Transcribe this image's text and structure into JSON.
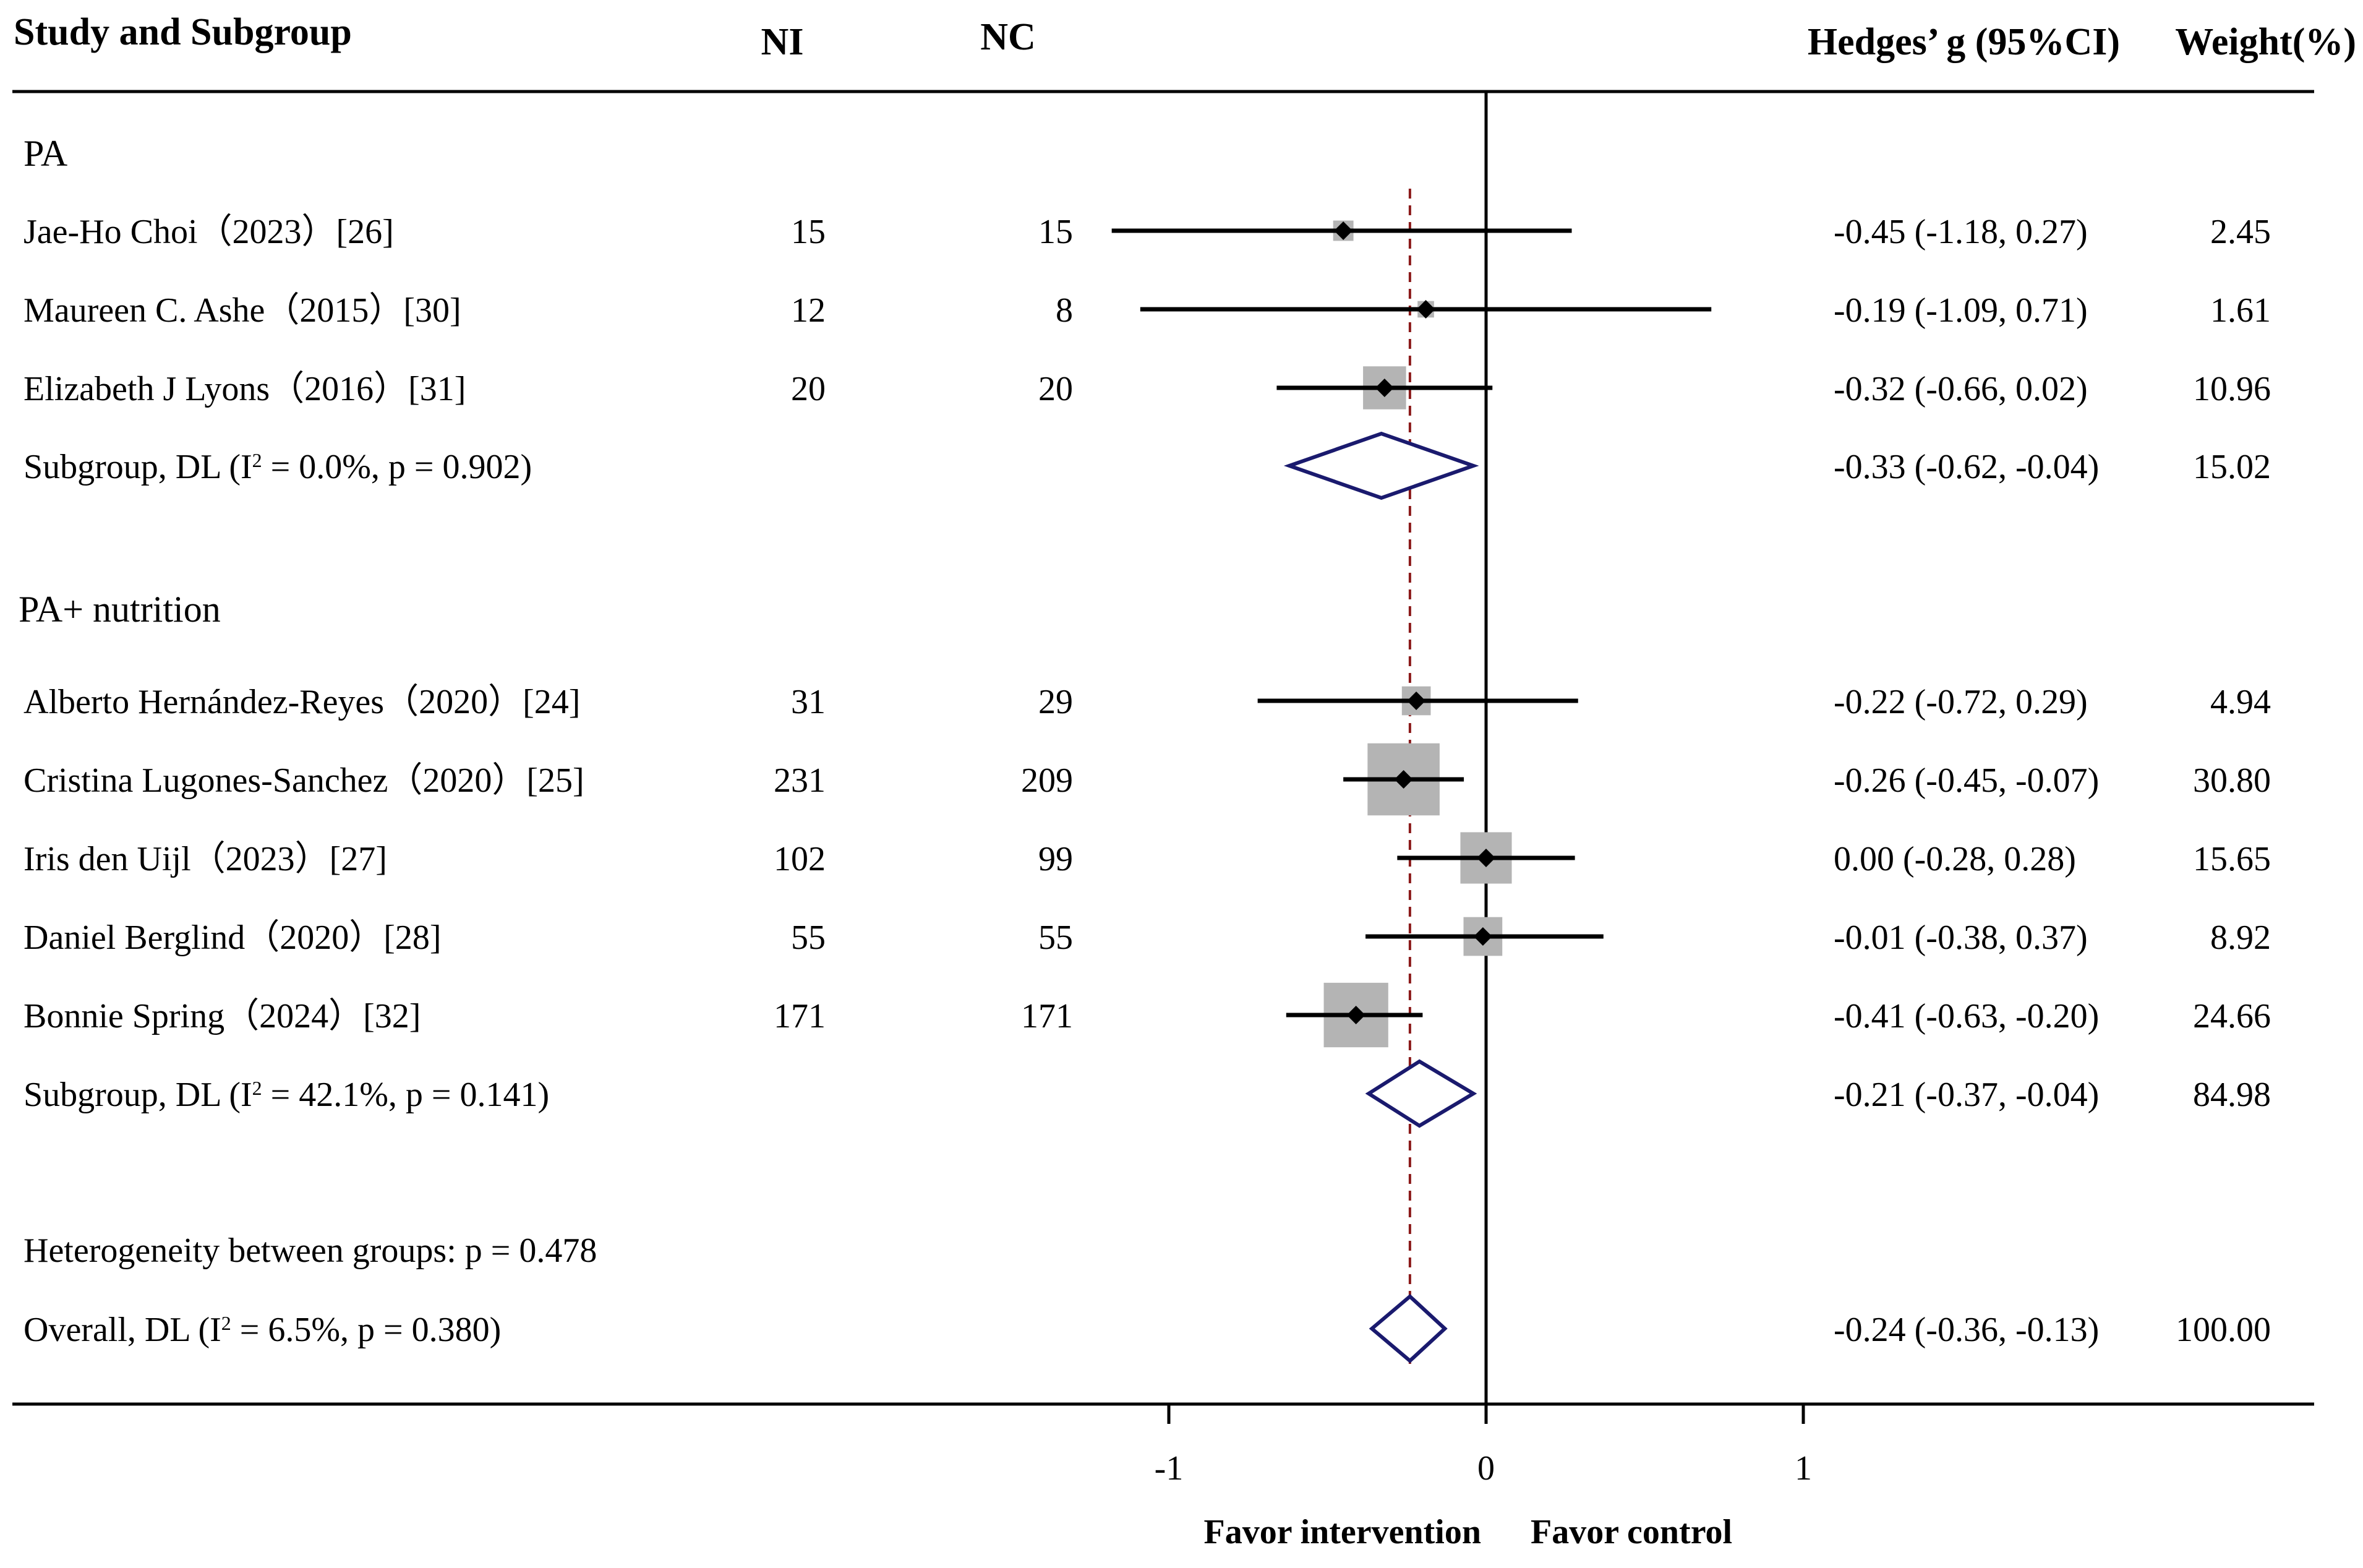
{
  "chart_data": {
    "type": "forest",
    "headers": {
      "study": "Study and Subgroup",
      "ni": "NI",
      "nc": "NC",
      "effect": "Hedges’ g (95%CI)",
      "weight": "Weight(%)"
    },
    "x_range": [
      -1.6,
      1.8
    ],
    "x_ticks": [
      {
        "value": -1,
        "label": "-1"
      },
      {
        "value": 0,
        "label": "0"
      },
      {
        "value": 1,
        "label": "1"
      }
    ],
    "reference_line": 0,
    "overall_effect_line": -0.24,
    "favor_left": "Favor intervention",
    "favor_right": "Favor control",
    "subgroups": [
      {
        "name": "PA",
        "studies": [
          {
            "study": "Jae-Ho Choi（2023）[26]",
            "ni": "15",
            "nc": "15",
            "g": -0.45,
            "lo": -1.18,
            "hi": 0.27,
            "ci_text": "-0.45 (-1.18, 0.27)",
            "weight": 2.45,
            "weight_text": "2.45"
          },
          {
            "study": "Maureen C. Ashe（2015）[30]",
            "ni": "12",
            "nc": "8",
            "g": -0.19,
            "lo": -1.09,
            "hi": 0.71,
            "ci_text": "-0.19 (-1.09, 0.71)",
            "weight": 1.61,
            "weight_text": "1.61"
          },
          {
            "study": "Elizabeth J Lyons（2016）[31]",
            "ni": "20",
            "nc": "20",
            "g": -0.32,
            "lo": -0.66,
            "hi": 0.02,
            "ci_text": "-0.32 (-0.66, 0.02)",
            "weight": 10.96,
            "weight_text": "10.96"
          }
        ],
        "summary": {
          "label_pre": "Subgroup, DL (I",
          "label_sup": "2",
          "label_post": " = 0.0%, p = 0.902)",
          "g": -0.33,
          "lo": -0.62,
          "hi": -0.04,
          "ci_text": "-0.33 (-0.62, -0.04)",
          "weight_text": "15.02"
        }
      },
      {
        "name": "PA+ nutrition",
        "studies": [
          {
            "study": "Alberto Hernández-Reyes（2020）[24]",
            "ni": "31",
            "nc": "29",
            "g": -0.22,
            "lo": -0.72,
            "hi": 0.29,
            "ci_text": "-0.22 (-0.72, 0.29)",
            "weight": 4.94,
            "weight_text": "4.94"
          },
          {
            "study": "Cristina Lugones-Sanchez（2020）[25]",
            "ni": "231",
            "nc": "209",
            "g": -0.26,
            "lo": -0.45,
            "hi": -0.07,
            "ci_text": "-0.26 (-0.45, -0.07)",
            "weight": 30.8,
            "weight_text": "30.80"
          },
          {
            "study": "Iris den Uijl（2023）[27]",
            "ni": "102",
            "nc": "99",
            "g": 0.0,
            "lo": -0.28,
            "hi": 0.28,
            "ci_text": "0.00 (-0.28, 0.28)",
            "weight": 15.65,
            "weight_text": "15.65"
          },
          {
            "study": "Daniel Berglind（2020）[28]",
            "ni": "55",
            "nc": "55",
            "g": -0.01,
            "lo": -0.38,
            "hi": 0.37,
            "ci_text": "-0.01 (-0.38, 0.37)",
            "weight": 8.92,
            "weight_text": "8.92"
          },
          {
            "study": "Bonnie Spring（2024）[32]",
            "ni": "171",
            "nc": "171",
            "g": -0.41,
            "lo": -0.63,
            "hi": -0.2,
            "ci_text": "-0.41 (-0.63, -0.20)",
            "weight": 24.66,
            "weight_text": "24.66"
          }
        ],
        "summary": {
          "label_pre": "Subgroup, DL (I",
          "label_sup": "2",
          "label_post": " = 42.1%, p = 0.141)",
          "g": -0.21,
          "lo": -0.37,
          "hi": -0.04,
          "ci_text": "-0.21 (-0.37, -0.04)",
          "weight_text": "84.98"
        }
      }
    ],
    "heterogeneity_text": "Heterogeneity between groups: p = 0.478",
    "overall": {
      "label_pre": "Overall, DL (I",
      "label_sup": "2",
      "label_post": " = 6.5%, p = 0.380)",
      "g": -0.24,
      "lo": -0.36,
      "hi": -0.13,
      "ci_text": "-0.24 (-0.36, -0.13)",
      "weight_text": "100.00"
    },
    "colors": {
      "text": "#000000",
      "line": "#000000",
      "weight_box": "#b4b4b4",
      "diamond": "#1a1a6e",
      "reference_dash": "#8b1a1a"
    }
  }
}
